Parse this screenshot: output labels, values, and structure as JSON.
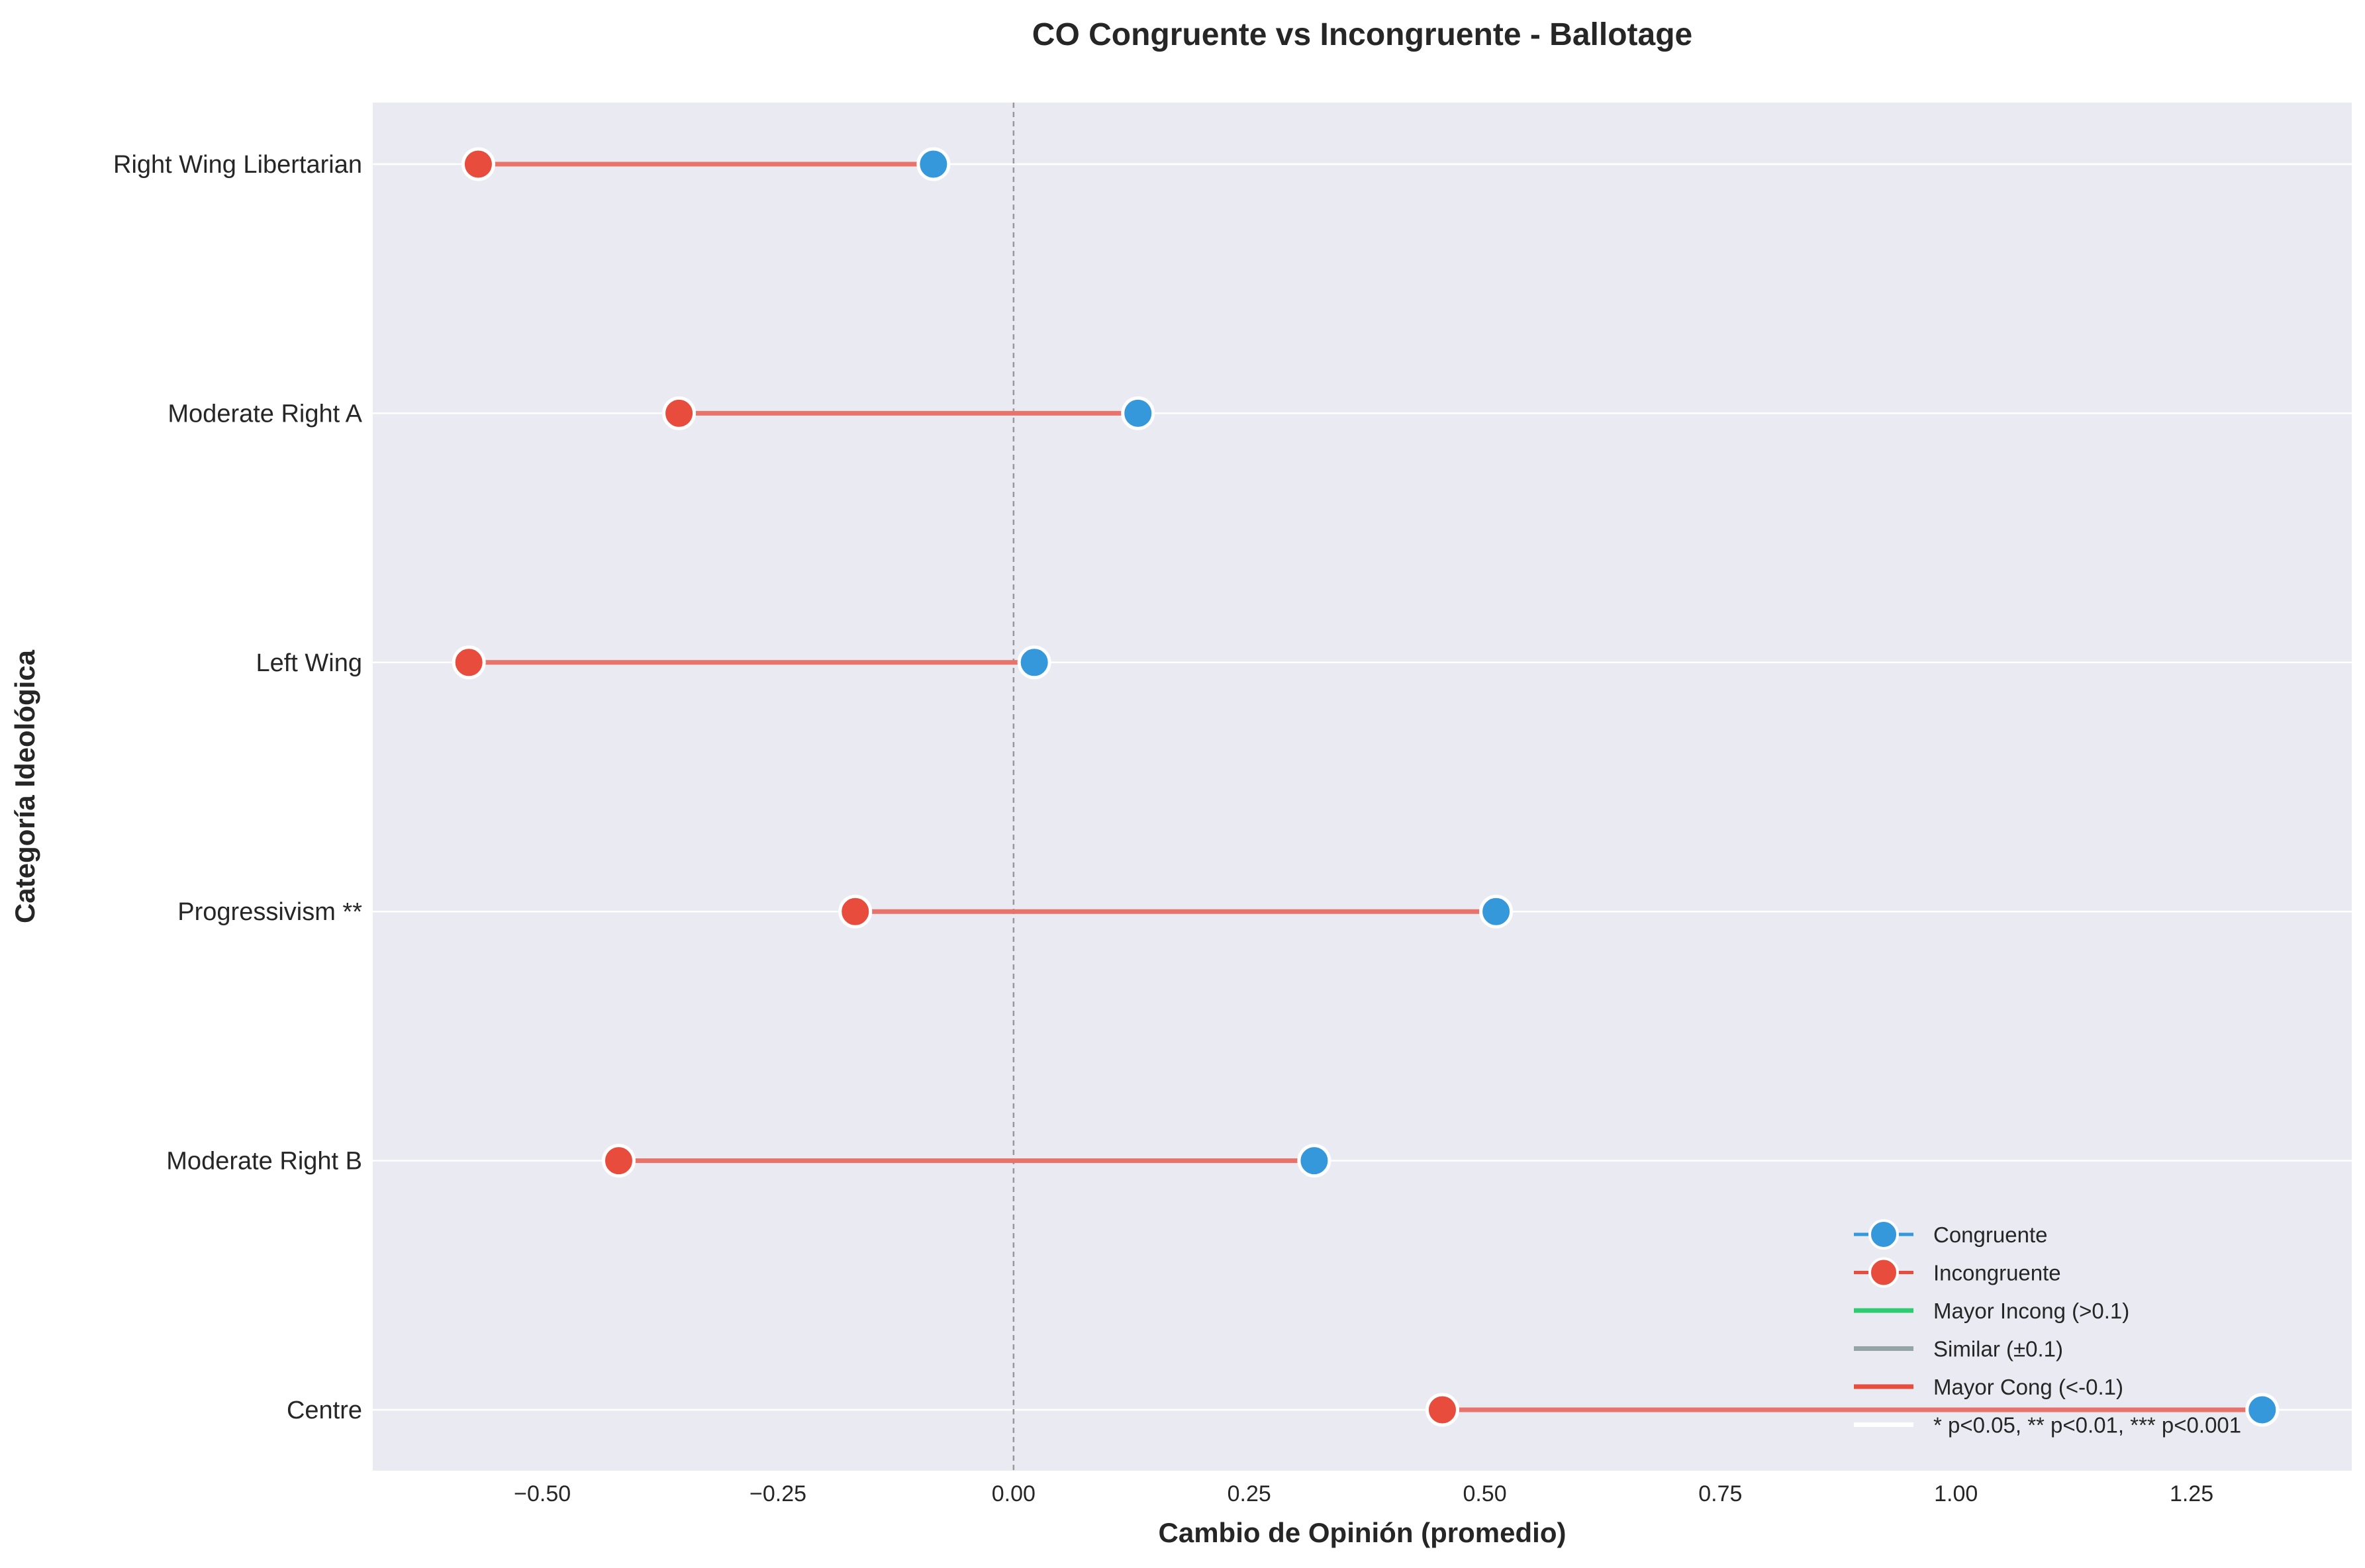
{
  "chart_data": {
    "type": "dumbbell",
    "title": "CO Congruente vs Incongruente - Ballotage",
    "xlabel": "Cambio de Opinión (promedio)",
    "ylabel": "Categoría Ideológica",
    "xlim": [
      -0.68,
      1.42
    ],
    "xticks": [
      -0.5,
      -0.25,
      0.0,
      0.25,
      0.5,
      0.75,
      1.0,
      1.25
    ],
    "xtick_labels": [
      "−0.50",
      "−0.25",
      "0.00",
      "0.25",
      "0.50",
      "0.75",
      "1.00",
      "1.25"
    ],
    "categories": [
      "Right Wing Libertarian",
      "Moderate Right A",
      "Left Wing",
      "Progressivism **",
      "Moderate Right B",
      "Centre"
    ],
    "series": [
      {
        "name": "Congruente",
        "color": "#3498db",
        "values": [
          -0.085,
          0.132,
          0.022,
          0.512,
          0.319,
          1.325
        ]
      },
      {
        "name": "Incongruente",
        "color": "#e74c3c",
        "values": [
          -0.568,
          -0.355,
          -0.578,
          -0.168,
          -0.419,
          0.455
        ]
      }
    ],
    "connector_color": "#e8736a",
    "reference_line_x": 0,
    "grid": true,
    "background": "#eaeaf2",
    "legend_position": "lower right",
    "legend": [
      {
        "label": "Congruente",
        "kind": "marker",
        "color": "#3498db"
      },
      {
        "label": "Incongruente",
        "kind": "marker",
        "color": "#e74c3c"
      },
      {
        "label": "Mayor Incong (>0.1)",
        "kind": "line",
        "color": "#2ecc71"
      },
      {
        "label": "Similar (±0.1)",
        "kind": "line",
        "color": "#95a5a6"
      },
      {
        "label": "Mayor Cong (<-0.1)",
        "kind": "line",
        "color": "#e74c3c"
      },
      {
        "label": "* p<0.05, ** p<0.01, *** p<0.001",
        "kind": "line",
        "color": "#ffffff"
      }
    ]
  }
}
